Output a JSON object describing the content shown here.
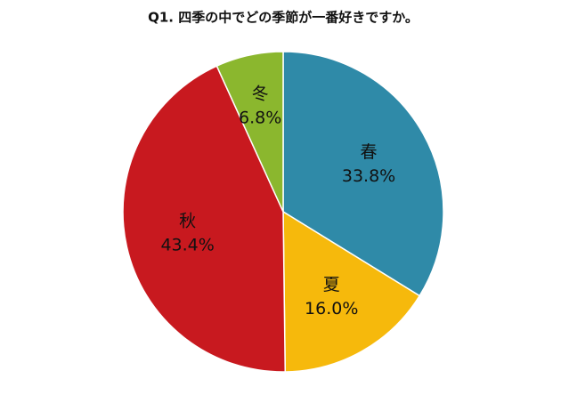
{
  "chart_data": {
    "type": "pie",
    "title": "Q1. 四季の中でどの季節が一番好きですか。",
    "categories": [
      "春",
      "夏",
      "秋",
      "冬"
    ],
    "values": [
      33.8,
      16.0,
      43.4,
      6.8
    ],
    "value_labels": [
      "33.8%",
      "16.0%",
      "43.4%",
      "6.8%"
    ],
    "colors": [
      "#2f8aa8",
      "#f6b90c",
      "#c8191f",
      "#8bb72e"
    ]
  }
}
